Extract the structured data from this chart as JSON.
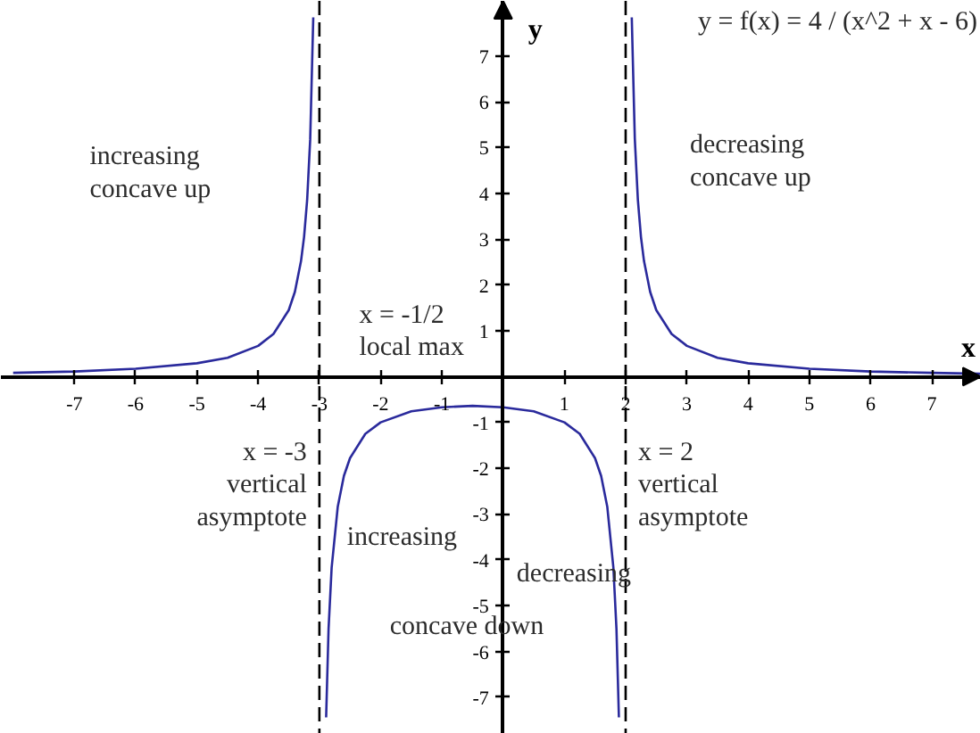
{
  "chart_data": {
    "type": "line",
    "title": "y = f(x) = 4 / (x^2 + x - 6)",
    "xlabel": "x",
    "ylabel": "y",
    "x": [
      -8,
      -7,
      -6,
      -5,
      -4.5,
      -4,
      -3.75,
      -3.5,
      -3.4,
      -3.3,
      -3.25,
      -3.2,
      -3.15,
      -3.1,
      -3,
      -2.89,
      -2.85,
      -2.8,
      -2.7,
      -2.6,
      -2.5,
      -2.25,
      -2,
      -1.5,
      -1,
      -0.5,
      0,
      0.5,
      1,
      1.25,
      1.5,
      1.6,
      1.7,
      1.8,
      1.85,
      1.89,
      2,
      2.1,
      2.15,
      2.2,
      2.25,
      2.3,
      2.4,
      2.5,
      2.75,
      3,
      3.5,
      4,
      5,
      6,
      7,
      7.8
    ],
    "series": [
      {
        "color": "#2a2a9c",
        "values": [
          0.08,
          0.11,
          0.17,
          0.29,
          0.41,
          0.67,
          0.93,
          1.45,
          1.85,
          2.52,
          3.05,
          3.85,
          5.18,
          7.84,
          null,
          -7.44,
          -5.5,
          -4.17,
          -2.84,
          -2.17,
          -1.78,
          -1.25,
          -1.0,
          -0.76,
          -0.67,
          -0.64,
          -0.67,
          -0.76,
          -1.0,
          -1.25,
          -1.78,
          -2.17,
          -2.84,
          -4.17,
          -5.5,
          -7.44,
          null,
          7.84,
          5.18,
          3.85,
          3.05,
          2.52,
          1.85,
          1.45,
          0.93,
          0.67,
          0.41,
          0.29,
          0.17,
          0.11,
          0.08,
          0.06
        ]
      }
    ],
    "xlim": [
      -8.2,
      7.8
    ],
    "ylim": [
      -7.8,
      8.2
    ],
    "xticks": [
      -7,
      -6,
      -5,
      -4,
      -3,
      -2,
      -1,
      1,
      2,
      3,
      4,
      5,
      6,
      7
    ],
    "yticks": [
      -7,
      -6,
      -5,
      -4,
      -3,
      -2,
      -1,
      1,
      2,
      3,
      4,
      5,
      6,
      7
    ],
    "ref_lines": [
      {
        "axis": "x",
        "value": -3,
        "label": "x = -3\nvertical\nasymptote",
        "color": "#000000",
        "line_style": "dashed"
      },
      {
        "axis": "x",
        "value": 2,
        "label": "x = 2\nvertical\nasymptote",
        "color": "#000000",
        "line_style": "dashed"
      }
    ],
    "annotations": [
      "increasing\nconcave up",
      "decreasing\nconcave up",
      "x = -1/2\nlocal max",
      "increasing",
      "decreasing",
      "concave down"
    ],
    "grid": false,
    "line_style": "solid"
  }
}
